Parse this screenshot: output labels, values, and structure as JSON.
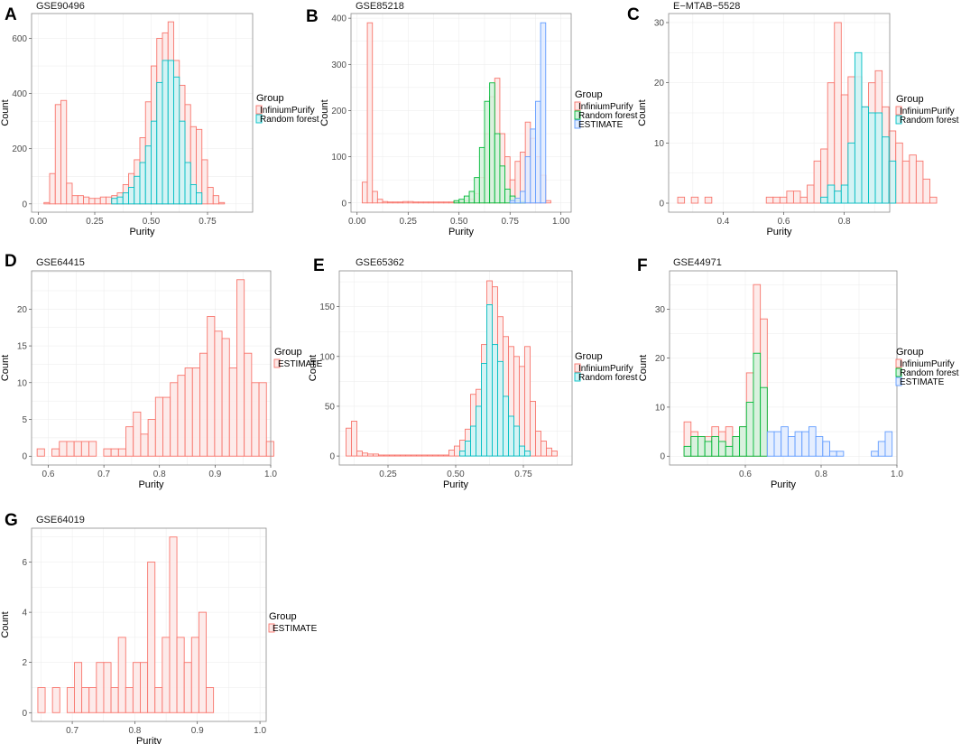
{
  "figure": {
    "x_label": "Purity",
    "y_label": "Count",
    "legend_title": "Group"
  },
  "colors": {
    "InfiniumPurify": {
      "stroke": "#f8766d",
      "fill": "#fde8e6"
    },
    "Random forest": {
      "stroke": "#00bfc4",
      "fill": "#ccf5f6"
    },
    "Random forest (3 groups)": {
      "stroke": "#00ba38",
      "fill": "#d2f2dc"
    },
    "ESTIMATE (3 groups)": {
      "stroke": "#619cff",
      "fill": "#e0ebff"
    },
    "ESTIMATE (single)": {
      "stroke": "#f8766d",
      "fill": "#fde8e6"
    },
    "panel_border": "#8c8c8c",
    "grid": "#ebebeb"
  },
  "chart_data": [
    {
      "panel": "A",
      "title": "GSE90496",
      "type": "histogram",
      "x_ticks": [
        0.0,
        0.25,
        0.5,
        0.75
      ],
      "x_tick_labels": [
        "0.00",
        "0.25",
        "0.50",
        "0.75"
      ],
      "y_ticks": [
        0,
        200,
        400,
        600
      ],
      "xlim": [
        -0.03,
        0.95
      ],
      "ylim": [
        -30,
        690
      ],
      "bin_start": 0.025,
      "bin_width": 0.025,
      "series": [
        {
          "name": "InfiniumPurify",
          "values": [
            5,
            110,
            360,
            375,
            75,
            30,
            30,
            25,
            20,
            20,
            25,
            25,
            30,
            40,
            70,
            110,
            160,
            240,
            370,
            500,
            600,
            620,
            660,
            520,
            430,
            360,
            280,
            270,
            160,
            60,
            30,
            5
          ]
        },
        {
          "name": "Random forest",
          "values": [
            0,
            0,
            0,
            0,
            0,
            0,
            0,
            0,
            0,
            0,
            0,
            0,
            20,
            25,
            40,
            60,
            100,
            150,
            210,
            300,
            440,
            520,
            520,
            460,
            300,
            150,
            70,
            40,
            0,
            0,
            0,
            0
          ]
        }
      ]
    },
    {
      "panel": "B",
      "title": "GSE85218",
      "type": "histogram",
      "x_ticks": [
        0.0,
        0.25,
        0.5,
        0.75,
        1.0
      ],
      "x_tick_labels": [
        "0.00",
        "0.25",
        "0.50",
        "0.75",
        "1.00"
      ],
      "y_ticks": [
        0,
        100,
        200,
        300,
        400
      ],
      "xlim": [
        -0.03,
        1.05
      ],
      "ylim": [
        -20,
        410
      ],
      "bin_start": 0.025,
      "bin_width": 0.025,
      "series": [
        {
          "name": "InfiniumPurify",
          "values": [
            45,
            390,
            25,
            8,
            3,
            2,
            2,
            2,
            3,
            3,
            2,
            2,
            2,
            2,
            2,
            2,
            2,
            2,
            3,
            3,
            5,
            8,
            20,
            55,
            150,
            230,
            270,
            150,
            100,
            50,
            90,
            110,
            175,
            140,
            100,
            60,
            5,
            0
          ]
        },
        {
          "name": "Random forest",
          "values": [
            0,
            0,
            0,
            0,
            0,
            0,
            0,
            0,
            0,
            0,
            0,
            0,
            0,
            0,
            0,
            0,
            0,
            0,
            5,
            8,
            15,
            25,
            55,
            120,
            220,
            260,
            150,
            80,
            30,
            15,
            5,
            3,
            0,
            0,
            0,
            0,
            0,
            0
          ]
        },
        {
          "name": "ESTIMATE",
          "values": [
            0,
            0,
            0,
            0,
            0,
            0,
            0,
            0,
            0,
            0,
            0,
            0,
            0,
            0,
            0,
            0,
            0,
            0,
            0,
            0,
            0,
            0,
            0,
            0,
            0,
            0,
            0,
            0,
            0,
            5,
            10,
            25,
            100,
            160,
            220,
            390,
            0,
            0
          ]
        }
      ]
    },
    {
      "panel": "C",
      "title": "E−MTAB−5528",
      "type": "histogram",
      "x_ticks": [
        0.4,
        0.6,
        0.8
      ],
      "x_tick_labels": [
        "0.4",
        "0.6",
        "0.8"
      ],
      "y_ticks": [
        0,
        10,
        20,
        30
      ],
      "xlim": [
        0.22,
        0.95
      ],
      "ylim": [
        -1.5,
        31.5
      ],
      "bin_start": 0.25,
      "bin_width": 0.0225,
      "series": [
        {
          "name": "InfiniumPurify",
          "values": [
            1,
            0,
            1,
            0,
            1,
            0,
            0,
            0,
            0,
            0,
            0,
            0,
            0,
            1,
            1,
            1,
            2,
            2,
            1,
            3,
            7,
            9,
            20,
            30,
            18,
            21,
            21,
            16,
            20,
            22,
            16,
            12,
            10,
            7,
            8,
            7,
            4,
            1
          ]
        },
        {
          "name": "Random forest",
          "values": [
            0,
            0,
            0,
            0,
            0,
            0,
            0,
            0,
            0,
            0,
            0,
            0,
            0,
            0,
            0,
            0,
            0,
            0,
            0,
            0,
            0,
            1,
            3,
            2,
            3,
            10,
            25,
            16,
            15,
            15,
            11,
            7,
            0,
            0,
            0,
            0,
            0,
            0
          ]
        }
      ]
    },
    {
      "panel": "D",
      "title": "GSE64415",
      "type": "histogram",
      "x_ticks": [
        0.6,
        0.7,
        0.8,
        0.9,
        1.0
      ],
      "x_tick_labels": [
        "0.6",
        "0.7",
        "0.8",
        "0.9",
        "1.0"
      ],
      "y_ticks": [
        0,
        5,
        10,
        15,
        20
      ],
      "xlim": [
        0.57,
        1.0
      ],
      "ylim": [
        -1.2,
        25.2
      ],
      "bin_start": 0.58,
      "bin_width": 0.0133,
      "series": [
        {
          "name": "ESTIMATE",
          "values": [
            1,
            0,
            1,
            2,
            2,
            2,
            2,
            2,
            0,
            1,
            1,
            1,
            4,
            6,
            3,
            5,
            8,
            8,
            10,
            11,
            12,
            12,
            14,
            19,
            17,
            16,
            12,
            24,
            14,
            10,
            10,
            2
          ]
        }
      ]
    },
    {
      "panel": "E",
      "title": "GSE65362",
      "type": "histogram",
      "x_ticks": [
        0.25,
        0.5,
        0.75
      ],
      "x_tick_labels": [
        "0.25",
        "0.50",
        "0.75"
      ],
      "y_ticks": [
        0,
        50,
        100,
        150
      ],
      "xlim": [
        0.07,
        0.93
      ],
      "ylim": [
        -9,
        186
      ],
      "bin_start": 0.095,
      "bin_width": 0.02,
      "series": [
        {
          "name": "InfiniumPurify",
          "values": [
            28,
            35,
            5,
            3,
            2,
            2,
            1,
            1,
            1,
            1,
            1,
            1,
            1,
            1,
            1,
            1,
            1,
            1,
            1,
            6,
            10,
            16,
            27,
            62,
            67,
            112,
            176,
            170,
            140,
            120,
            110,
            100,
            90,
            110,
            55,
            25,
            15,
            8,
            5
          ]
        },
        {
          "name": "Random forest",
          "values": [
            0,
            0,
            0,
            0,
            0,
            0,
            0,
            0,
            0,
            0,
            0,
            0,
            0,
            0,
            0,
            0,
            0,
            0,
            0,
            0,
            0,
            5,
            15,
            30,
            50,
            93,
            152,
            112,
            95,
            60,
            40,
            30,
            10,
            5,
            0,
            0,
            0,
            0,
            0
          ]
        }
      ]
    },
    {
      "panel": "F",
      "title": "GSE44971",
      "type": "histogram",
      "x_ticks": [
        0.6,
        0.8,
        1.0
      ],
      "x_tick_labels": [
        "0.6",
        "0.8",
        "1.0"
      ],
      "y_ticks": [
        0,
        10,
        20,
        30
      ],
      "xlim": [
        0.4,
        1.0
      ],
      "ylim": [
        -1.8,
        37.8
      ],
      "bin_start": 0.42,
      "bin_width": 0.0183,
      "series": [
        {
          "name": "InfiniumPurify",
          "values": [
            0,
            7,
            5,
            4,
            4,
            6,
            5,
            6,
            4,
            6,
            17,
            35,
            28,
            0,
            0,
            0,
            0,
            0,
            0,
            0,
            0,
            0,
            0,
            0,
            0,
            0,
            0,
            0,
            0,
            0,
            0,
            0
          ]
        },
        {
          "name": "Random forest",
          "values": [
            0,
            2,
            4,
            4,
            3,
            4,
            3,
            2,
            4,
            6,
            11,
            21,
            14,
            0,
            0,
            0,
            0,
            0,
            0,
            0,
            0,
            0,
            0,
            0,
            0,
            0,
            0,
            0,
            0,
            0,
            0,
            0
          ]
        },
        {
          "name": "ESTIMATE",
          "values": [
            0,
            0,
            0,
            0,
            0,
            0,
            0,
            0,
            0,
            0,
            0,
            0,
            0,
            5,
            5,
            6,
            4,
            5,
            5,
            6,
            4,
            3,
            1,
            1,
            0,
            0,
            0,
            0,
            1,
            3,
            5,
            0
          ]
        }
      ]
    },
    {
      "panel": "G",
      "title": "GSE64019",
      "type": "histogram",
      "x_ticks": [
        0.7,
        0.8,
        0.9,
        1.0
      ],
      "x_tick_labels": [
        "0.7",
        "0.8",
        "0.9",
        "1.0"
      ],
      "y_ticks": [
        0,
        2,
        4,
        6
      ],
      "xlim": [
        0.635,
        1.01
      ],
      "ylim": [
        -0.35,
        7.35
      ],
      "bin_start": 0.645,
      "bin_width": 0.0117,
      "series": [
        {
          "name": "ESTIMATE",
          "values": [
            1,
            0,
            1,
            0,
            1,
            2,
            1,
            1,
            2,
            2,
            1,
            3,
            1,
            2,
            2,
            6,
            1,
            3,
            7,
            3,
            2,
            3,
            4,
            1
          ]
        }
      ]
    }
  ],
  "panels": [
    {
      "letter": "A",
      "title": "GSE90496",
      "legend": [
        "InfiniumPurify",
        "Random forest"
      ]
    },
    {
      "letter": "B",
      "title": "GSE85218",
      "legend": [
        "InfiniumPurify",
        "Random forest",
        "ESTIMATE"
      ]
    },
    {
      "letter": "C",
      "title": "E−MTAB−5528",
      "legend": [
        "InfiniumPurify",
        "Random forest"
      ]
    },
    {
      "letter": "D",
      "title": "GSE64415",
      "legend": [
        "ESTIMATE"
      ]
    },
    {
      "letter": "E",
      "title": "GSE65362",
      "legend": [
        "InfiniumPurify",
        "Random forest"
      ]
    },
    {
      "letter": "F",
      "title": "GSE44971",
      "legend": [
        "InfiniumPurify",
        "Random forest",
        "ESTIMATE"
      ]
    },
    {
      "letter": "G",
      "title": "GSE64019",
      "legend": [
        "ESTIMATE"
      ]
    }
  ]
}
